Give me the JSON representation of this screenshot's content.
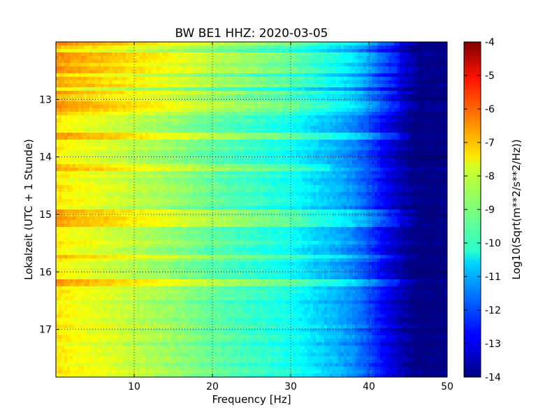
{
  "chart_data": {
    "type": "heatmap",
    "title": "BW BE1 HHZ: 2020-03-05",
    "xlabel": "Frequency [Hz]",
    "ylabel": "Lokalzeit (UTC + 1 Stunde)",
    "xlim": [
      0,
      50
    ],
    "ylim": [
      12.0,
      17.83
    ],
    "y_inverted": true,
    "x_ticks": [
      "10",
      "20",
      "30",
      "40",
      "50"
    ],
    "y_ticks": [
      "13",
      "14",
      "15",
      "16",
      "17"
    ],
    "grid": true,
    "colormap": "jet",
    "colorbar": {
      "label": "Log10(Sqrt(m**2/s**2/Hz))",
      "range": [
        -14,
        -4
      ],
      "ticks": [
        "-4",
        "-5",
        "-6",
        "-7",
        "-8",
        "-9",
        "-10",
        "-11",
        "-12",
        "-13",
        "-14"
      ]
    },
    "spectrum_profile": [
      {
        "freq": 0.5,
        "value": -7.6
      },
      {
        "freq": 2,
        "value": -7.8
      },
      {
        "freq": 5,
        "value": -8.0
      },
      {
        "freq": 10,
        "value": -8.4
      },
      {
        "freq": 15,
        "value": -8.8
      },
      {
        "freq": 20,
        "value": -9.3
      },
      {
        "freq": 25,
        "value": -9.7
      },
      {
        "freq": 30,
        "value": -10.1
      },
      {
        "freq": 33,
        "value": -10.6
      },
      {
        "freq": 36,
        "value": -11.0
      },
      {
        "freq": 38,
        "value": -11.4
      },
      {
        "freq": 40,
        "value": -12.0
      },
      {
        "freq": 42,
        "value": -12.8
      },
      {
        "freq": 44,
        "value": -13.5
      },
      {
        "freq": 46,
        "value": -14.0
      },
      {
        "freq": 50,
        "value": -14.0
      }
    ],
    "bands": [
      {
        "time": 12.02,
        "boost": 1.0,
        "fmax": 46
      },
      {
        "time": 12.1,
        "boost": 0.6,
        "fmax": 45
      },
      {
        "time": 12.22,
        "boost": 0.8,
        "fmax": 45
      },
      {
        "time": 12.3,
        "boost": 0.9,
        "fmax": 46
      },
      {
        "time": 12.42,
        "boost": 0.8,
        "fmax": 46
      },
      {
        "time": 12.5,
        "boost": 0.9,
        "fmax": 46
      },
      {
        "time": 12.67,
        "boost": 0.7,
        "fmax": 46
      },
      {
        "time": 12.75,
        "boost": 0.7,
        "fmax": 46
      },
      {
        "time": 12.88,
        "boost": 0.8,
        "fmax": 46
      },
      {
        "time": 12.98,
        "boost": 0.6,
        "fmax": 45
      },
      {
        "time": 13.1,
        "boost": 0.8,
        "fmax": 46
      },
      {
        "time": 13.2,
        "boost": 0.6,
        "fmax": 45
      },
      {
        "time": 13.65,
        "boost": 0.7,
        "fmax": 45
      },
      {
        "time": 14.2,
        "boost": 0.5,
        "fmax": 35
      },
      {
        "time": 14.98,
        "boost": 0.8,
        "fmax": 46
      },
      {
        "time": 15.1,
        "boost": 0.8,
        "fmax": 46
      },
      {
        "time": 15.2,
        "boost": 0.7,
        "fmax": 46
      },
      {
        "time": 15.75,
        "boost": 0.8,
        "fmax": 46
      },
      {
        "time": 16.2,
        "boost": 0.8,
        "fmax": 46
      }
    ]
  }
}
